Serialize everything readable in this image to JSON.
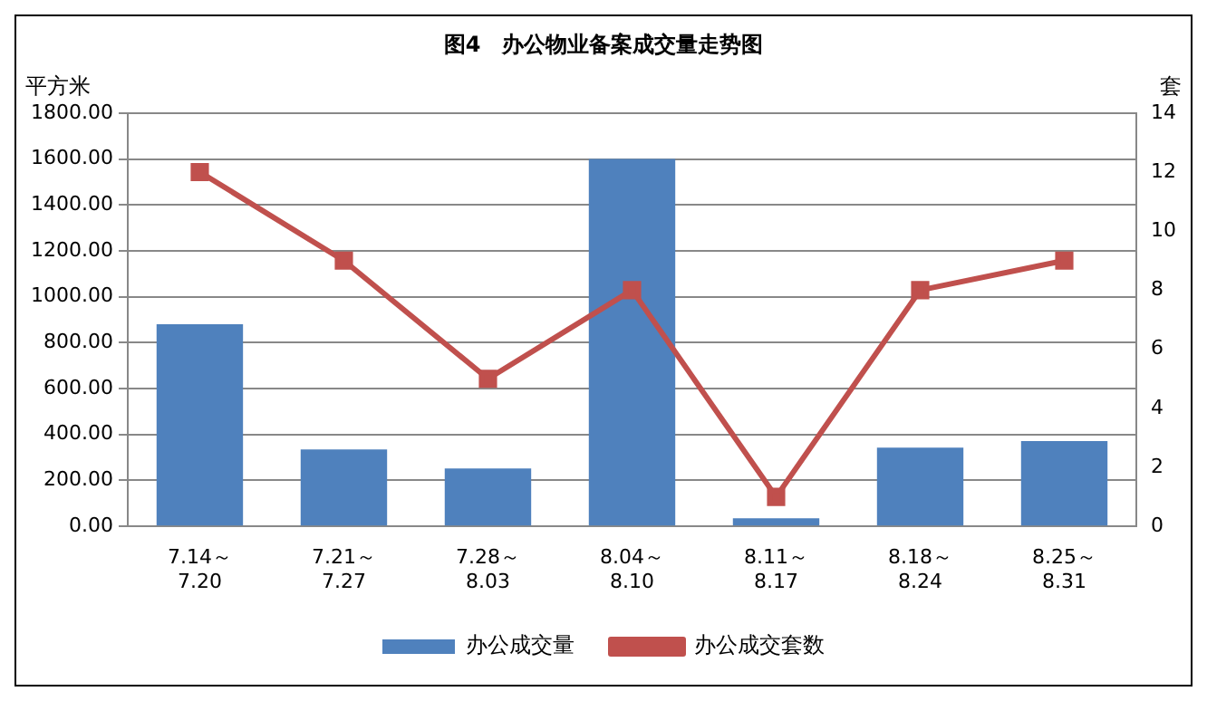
{
  "chart_data": {
    "type": "bar",
    "title": "图4　办公物业备案成交量走势图",
    "ylabel": "平方米",
    "y2label": "套",
    "categories": [
      "7.14～\n7.20",
      "7.21～\n7.27",
      "7.28～\n8.03",
      "8.04～\n8.10",
      "8.11～\n8.17",
      "8.18～\n8.24",
      "8.25～\n8.31"
    ],
    "series": [
      {
        "name": "办公成交量",
        "color": "#4f81bd",
        "values": [
          880,
          335,
          252,
          1600,
          35,
          343,
          372
        ]
      },
      {
        "name": "办公成交套数",
        "type": "line",
        "axis": "y2",
        "color": "#c0504d",
        "values": [
          12,
          9,
          5,
          8,
          1,
          8,
          9
        ]
      }
    ],
    "ylim": [
      0,
      1800
    ],
    "yticks": [
      {
        "value": 0,
        "label": "0.00"
      },
      {
        "value": 200,
        "label": "200.00"
      },
      {
        "value": 400,
        "label": "400.00"
      },
      {
        "value": 600,
        "label": "600.00"
      },
      {
        "value": 800,
        "label": "800.00"
      },
      {
        "value": 1000,
        "label": "1000.00"
      },
      {
        "value": 1200,
        "label": "1200.00"
      },
      {
        "value": 1400,
        "label": "1400.00"
      },
      {
        "value": 1600,
        "label": "1600.00"
      },
      {
        "value": 1800,
        "label": "1800.00"
      }
    ],
    "y2lim": [
      0,
      14
    ],
    "y2ticks": [
      0,
      2,
      4,
      6,
      8,
      10,
      12,
      14
    ],
    "grid": "y",
    "legend": "bottom",
    "marker": "square",
    "line_style": "solid"
  }
}
